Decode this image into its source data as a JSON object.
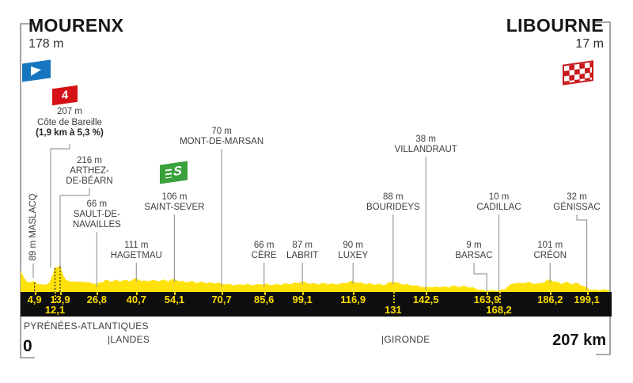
{
  "header": {
    "start_name": "MOURENX",
    "start_elevation": "178 m",
    "finish_name": "LIBOURNE",
    "finish_elevation": "17 m"
  },
  "footer": {
    "start_km": "0",
    "total_distance": "207 km"
  },
  "climb": {
    "elevation": "207 m",
    "name": "Côte de Bareille",
    "gradient": "(1,9 km à 5,3 %)"
  },
  "flags": {
    "climb_category": "4",
    "sprint_letter": "S"
  },
  "departments": [
    {
      "label": "PYRÉNÉES-ATLANTIQUES"
    },
    {
      "label": "|LANDES"
    },
    {
      "label": "|GIRONDE"
    }
  ],
  "km_bar": {
    "row1": [
      "4,9",
      "13,9",
      "26,8",
      "40,7",
      "54,1",
      "70,7",
      "85,6",
      "99,1",
      "116,9",
      "142,5",
      "163,9",
      "186,2",
      "199,1"
    ],
    "row2": [
      "12,1",
      "131",
      "168,2"
    ]
  },
  "chart_data": {
    "type": "area",
    "title": "Stage profile MOURENX to LIBOURNE",
    "xlabel": "km",
    "ylabel": "m",
    "x_range_km": [
      0,
      207
    ],
    "y_range_m": [
      0,
      230
    ],
    "grid": false,
    "start": {
      "name": "MOURENX",
      "km": 0,
      "elevation_m": 178
    },
    "finish": {
      "name": "LIBOURNE",
      "km": 207,
      "elevation_m": 17
    },
    "waypoints": [
      {
        "name": "MASLACQ",
        "name_lines": "MASLACQ",
        "label": "89 m",
        "km": 4.9,
        "elevation_m": 89,
        "type": "town"
      },
      {
        "name": "Côte de Bareille",
        "name_lines": "Côte de Bareille",
        "label": "207 m",
        "km": 12.1,
        "elevation_m": 207,
        "type": "climb_category_4",
        "gradient": "(1,9 km à 5,3 %)"
      },
      {
        "name": "ARTHEZ-DE-BÉARN",
        "name_lines": "ARTHEZ-\nDE-BÉARN",
        "label": "216 m",
        "km": 13.9,
        "elevation_m": 216,
        "type": "town"
      },
      {
        "name": "SAULT-DE-NAVAILLES",
        "name_lines": "SAULT-DE-\nNAVAILLES",
        "label": "66 m",
        "km": 26.8,
        "elevation_m": 66,
        "type": "town"
      },
      {
        "name": "HAGETMAU",
        "name_lines": "HAGETMAU",
        "label": "111 m",
        "km": 40.7,
        "elevation_m": 111,
        "type": "town"
      },
      {
        "name": "SAINT-SEVER",
        "name_lines": "SAINT-SEVER",
        "label": "106 m",
        "km": 54.1,
        "elevation_m": 106,
        "type": "sprint"
      },
      {
        "name": "MONT-DE-MARSAN",
        "name_lines": "MONT-DE-MARSAN",
        "label": "70 m",
        "km": 70.7,
        "elevation_m": 70,
        "type": "town"
      },
      {
        "name": "CÈRE",
        "name_lines": "CÈRE",
        "label": "66 m",
        "km": 85.6,
        "elevation_m": 66,
        "type": "town"
      },
      {
        "name": "LABRIT",
        "name_lines": "LABRIT",
        "label": "87 m",
        "km": 99.1,
        "elevation_m": 87,
        "type": "town"
      },
      {
        "name": "LUXEY",
        "name_lines": "LUXEY",
        "label": "90 m",
        "km": 116.9,
        "elevation_m": 90,
        "type": "town"
      },
      {
        "name": "BOURIDEYS",
        "name_lines": "BOURIDEYS",
        "label": "88 m",
        "km": 131,
        "elevation_m": 88,
        "type": "town"
      },
      {
        "name": "VILLANDRAUT",
        "name_lines": "VILLANDRAUT",
        "label": "38 m",
        "km": 142.5,
        "elevation_m": 38,
        "type": "town"
      },
      {
        "name": "BARSAC",
        "name_lines": "BARSAC",
        "label": "9 m",
        "km": 163.9,
        "elevation_m": 9,
        "type": "town"
      },
      {
        "name": "CADILLAC",
        "name_lines": "CADILLAC",
        "label": "10 m",
        "km": 168.2,
        "elevation_m": 10,
        "type": "town"
      },
      {
        "name": "CRÉON",
        "name_lines": "CRÉON",
        "label": "101 m",
        "km": 186.2,
        "elevation_m": 101,
        "type": "town"
      },
      {
        "name": "GÉNISSAC",
        "name_lines": "GÉNISSAC",
        "label": "32 m",
        "km": 199.1,
        "elevation_m": 32,
        "type": "town"
      }
    ],
    "departments": [
      {
        "name": "PYRÉNÉES-ATLANTIQUES",
        "boundary_km": 0
      },
      {
        "name": "LANDES",
        "boundary_km": 31
      },
      {
        "name": "GIRONDE",
        "boundary_km": 127.5
      }
    ],
    "profile": [
      [
        0,
        178
      ],
      [
        0.8,
        128
      ],
      [
        2,
        92
      ],
      [
        3.5,
        76
      ],
      [
        4.9,
        89
      ],
      [
        6,
        68
      ],
      [
        7.5,
        58
      ],
      [
        9,
        63
      ],
      [
        10.2,
        76
      ],
      [
        11.2,
        135
      ],
      [
        12.1,
        207
      ],
      [
        13,
        201
      ],
      [
        13.9,
        216
      ],
      [
        14.8,
        148
      ],
      [
        16,
        100
      ],
      [
        17.5,
        80
      ],
      [
        19,
        92
      ],
      [
        20.5,
        78
      ],
      [
        22,
        86
      ],
      [
        24,
        76
      ],
      [
        26.8,
        66
      ],
      [
        28.5,
        82
      ],
      [
        30,
        96
      ],
      [
        31.5,
        86
      ],
      [
        33,
        96
      ],
      [
        34.5,
        88
      ],
      [
        36,
        96
      ],
      [
        38,
        90
      ],
      [
        40.7,
        111
      ],
      [
        42.5,
        92
      ],
      [
        44,
        88
      ],
      [
        46,
        96
      ],
      [
        48,
        90
      ],
      [
        50,
        96
      ],
      [
        52,
        92
      ],
      [
        54.1,
        106
      ],
      [
        56,
        88
      ],
      [
        58,
        82
      ],
      [
        60,
        86
      ],
      [
        62,
        78
      ],
      [
        64,
        80
      ],
      [
        66,
        74
      ],
      [
        68,
        75
      ],
      [
        70.7,
        70
      ],
      [
        73,
        62
      ],
      [
        76,
        58
      ],
      [
        79,
        63
      ],
      [
        82,
        58
      ],
      [
        85.6,
        66
      ],
      [
        88,
        58
      ],
      [
        91,
        62
      ],
      [
        94,
        67
      ],
      [
        97,
        72
      ],
      [
        99.1,
        87
      ],
      [
        101,
        72
      ],
      [
        104,
        66
      ],
      [
        107,
        70
      ],
      [
        110,
        64
      ],
      [
        113,
        68
      ],
      [
        116.9,
        90
      ],
      [
        119,
        74
      ],
      [
        122,
        68
      ],
      [
        125,
        64
      ],
      [
        128,
        58
      ],
      [
        131,
        88
      ],
      [
        133,
        70
      ],
      [
        135,
        63
      ],
      [
        137,
        58
      ],
      [
        139,
        52
      ],
      [
        142.5,
        38
      ],
      [
        144,
        44
      ],
      [
        146,
        38
      ],
      [
        148,
        44
      ],
      [
        150,
        40
      ],
      [
        152,
        50
      ],
      [
        154,
        44
      ],
      [
        156,
        48
      ],
      [
        158,
        40
      ],
      [
        160,
        28
      ],
      [
        162,
        16
      ],
      [
        163.9,
        9
      ],
      [
        166,
        13
      ],
      [
        168.2,
        10
      ],
      [
        170,
        22
      ],
      [
        172,
        56
      ],
      [
        174,
        76
      ],
      [
        176,
        70
      ],
      [
        178,
        80
      ],
      [
        180,
        72
      ],
      [
        182,
        66
      ],
      [
        184,
        82
      ],
      [
        186.2,
        101
      ],
      [
        188,
        84
      ],
      [
        190,
        70
      ],
      [
        192,
        80
      ],
      [
        194,
        66
      ],
      [
        196,
        72
      ],
      [
        197.5,
        52
      ],
      [
        199.1,
        32
      ],
      [
        200.5,
        20
      ],
      [
        202,
        17
      ],
      [
        204,
        18
      ],
      [
        207,
        17
      ]
    ],
    "colors": {
      "profile_yellow": "#FFE20A",
      "bar_black": "#0E0E0E",
      "km_text": "#FFDE00",
      "depart_blue": "#1777BE",
      "climb_red": "#D41217",
      "sprint_green": "#3BA13C",
      "finish_red": "#C8191C"
    }
  }
}
